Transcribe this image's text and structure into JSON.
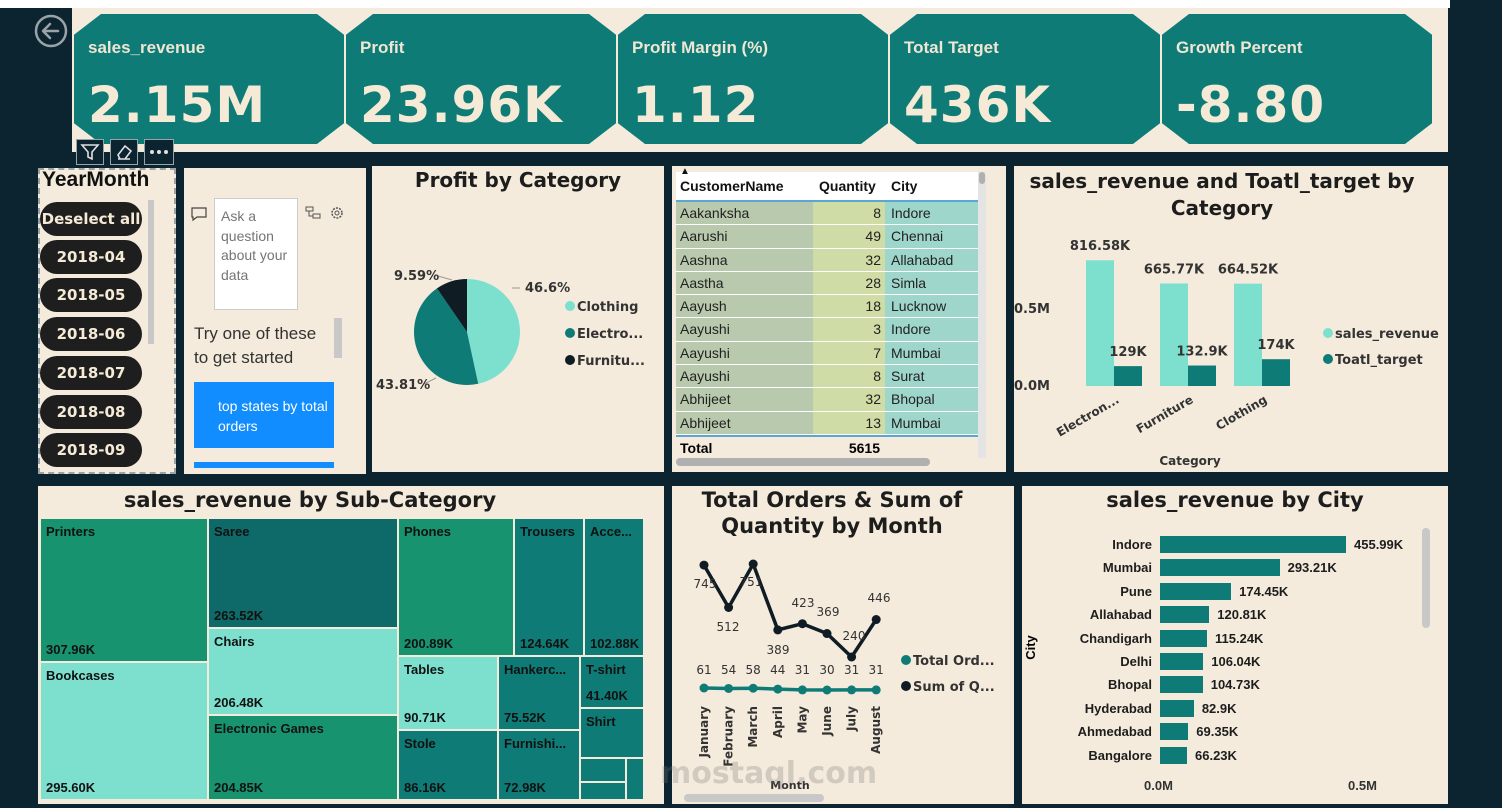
{
  "nav": {
    "back_icon": "back-arrow-icon"
  },
  "kpis": [
    {
      "label": "sales_revenue",
      "value": "2.15M"
    },
    {
      "label": "Profit",
      "value": "23.96K"
    },
    {
      "label": "Profit Margin (%)",
      "value": "1.12"
    },
    {
      "label": "Total Target",
      "value": "436K"
    },
    {
      "label": "Growth Percent",
      "value": "-8.80"
    }
  ],
  "colors": {
    "teal": "#0e7b76",
    "light_teal": "#7de0cf",
    "dark": "#0f1c24",
    "panel": "#f4ebdc",
    "background": "#0c2430"
  },
  "visual_toolbar": {
    "filter_icon": "filter-icon",
    "eraser_icon": "eraser-icon",
    "more_icon": "more-options-icon"
  },
  "slicer": {
    "title": "YearMonth",
    "deselect_label": "Deselect all",
    "items": [
      "2018-04",
      "2018-05",
      "2018-06",
      "2018-07",
      "2018-08",
      "2018-09"
    ]
  },
  "qna": {
    "placeholder": "Ask a question about your data",
    "prompt": "Try one of these to get started",
    "suggestion": "top states by total orders"
  },
  "profit_by_category": {
    "title": "Profit by Category",
    "legend": [
      "Clothing",
      "Electro...",
      "Furnitu..."
    ],
    "labels": [
      "9.59%",
      "46.6%",
      "43.81%"
    ]
  },
  "customer_table": {
    "headers": [
      "CustomerName",
      "Quantity",
      "City"
    ],
    "rows": [
      [
        "Aakanksha",
        "8",
        "Indore"
      ],
      [
        "Aarushi",
        "49",
        "Chennai"
      ],
      [
        "Aashna",
        "32",
        "Allahabad"
      ],
      [
        "Aastha",
        "28",
        "Simla"
      ],
      [
        "Aayush",
        "18",
        "Lucknow"
      ],
      [
        "Aayushi",
        "3",
        "Indore"
      ],
      [
        "Aayushi",
        "7",
        "Mumbai"
      ],
      [
        "Aayushi",
        "8",
        "Surat"
      ],
      [
        "Abhijeet",
        "32",
        "Bhopal"
      ],
      [
        "Abhijeet",
        "13",
        "Mumbai"
      ]
    ],
    "total_label": "Total",
    "total_value": "5615"
  },
  "revenue_target_chart": {
    "title": "sales_revenue and Toatl_target by Category",
    "xlabel": "Category",
    "legend": [
      "sales_revenue",
      "Toatl_target"
    ],
    "y_ticks": [
      "0.5M",
      "0.0M"
    ]
  },
  "subcategory_treemap": {
    "title": "sales_revenue by Sub-Category",
    "tiles": [
      {
        "name": "Printers",
        "value": "307.96K"
      },
      {
        "name": "Bookcases",
        "value": "295.60K"
      },
      {
        "name": "Saree",
        "value": "263.52K"
      },
      {
        "name": "Chairs",
        "value": "206.48K"
      },
      {
        "name": "Electronic Games",
        "value": "204.85K"
      },
      {
        "name": "Phones",
        "value": "200.89K"
      },
      {
        "name": "Trousers",
        "value": "124.64K"
      },
      {
        "name": "Acce...",
        "value": "102.88K"
      },
      {
        "name": "Tables",
        "value": "90.71K"
      },
      {
        "name": "Stole",
        "value": "86.16K"
      },
      {
        "name": "Hankerc...",
        "value": "75.52K"
      },
      {
        "name": "Furnishi...",
        "value": "72.98K"
      },
      {
        "name": "T-shirt",
        "value": "41.40K"
      },
      {
        "name": "Shirt",
        "value": ""
      }
    ]
  },
  "orders_quantity_chart": {
    "title_line1": "Total Orders & Sum of",
    "title_line2": "Quantity by Month",
    "xlabel": "Month",
    "legend": [
      "Total Ord...",
      "Sum of Q..."
    ]
  },
  "city_chart": {
    "title": "sales_revenue by City",
    "ylabel": "City",
    "x_ticks": [
      "0.0M",
      "0.5M"
    ],
    "cities": [
      {
        "name": "Indore",
        "value": 455.99,
        "label": "455.99K"
      },
      {
        "name": "Mumbai",
        "value": 293.21,
        "label": "293.21K"
      },
      {
        "name": "Pune",
        "value": 174.45,
        "label": "174.45K"
      },
      {
        "name": "Allahabad",
        "value": 120.81,
        "label": "120.81K"
      },
      {
        "name": "Chandigarh",
        "value": 115.24,
        "label": "115.24K"
      },
      {
        "name": "Delhi",
        "value": 106.04,
        "label": "106.04K"
      },
      {
        "name": "Bhopal",
        "value": 104.73,
        "label": "104.73K"
      },
      {
        "name": "Hyderabad",
        "value": 82.9,
        "label": "82.9K"
      },
      {
        "name": "Ahmedabad",
        "value": 69.35,
        "label": "69.35K"
      },
      {
        "name": "Bangalore",
        "value": 66.23,
        "label": "66.23K"
      }
    ]
  },
  "watermark": {
    "text": "mostaql.com"
  },
  "chart_data": [
    {
      "type": "pie",
      "title": "Profit by Category",
      "categories": [
        "Clothing",
        "Electronics",
        "Furniture"
      ],
      "values": [
        46.6,
        43.81,
        9.59
      ],
      "labels": [
        "46.6%",
        "43.81%",
        "9.59%"
      ]
    },
    {
      "type": "bar",
      "title": "sales_revenue and Toatl_target by Category",
      "categories": [
        "Electron...",
        "Furniture",
        "Clothing"
      ],
      "series": [
        {
          "name": "sales_revenue",
          "values": [
            816.58,
            665.77,
            664.52
          ],
          "labels": [
            "816.58K",
            "665.77K",
            "664.52K"
          ]
        },
        {
          "name": "Toatl_target",
          "values": [
            129,
            132.9,
            174
          ],
          "labels": [
            "129K",
            "132.9K",
            "174K"
          ]
        }
      ],
      "xlabel": "Category",
      "ylim": [
        0,
        900
      ]
    },
    {
      "type": "line",
      "title": "Total Orders & Sum of Quantity by Month",
      "categories": [
        "January",
        "February",
        "March",
        "April",
        "May",
        "June",
        "July",
        "August"
      ],
      "series": [
        {
          "name": "Total Orders",
          "values": [
            61,
            54,
            58,
            44,
            31,
            30,
            31,
            31
          ]
        },
        {
          "name": "Sum of Quantity",
          "values": [
            745,
            512,
            751,
            389,
            423,
            369,
            240,
            446
          ]
        }
      ],
      "xlabel": "Month"
    },
    {
      "type": "bar",
      "title": "sales_revenue by City",
      "orientation": "horizontal",
      "categories": [
        "Indore",
        "Mumbai",
        "Pune",
        "Allahabad",
        "Chandigarh",
        "Delhi",
        "Bhopal",
        "Hyderabad",
        "Ahmedabad",
        "Bangalore"
      ],
      "values": [
        455.99,
        293.21,
        174.45,
        120.81,
        115.24,
        106.04,
        104.73,
        82.9,
        69.35,
        66.23
      ],
      "ylabel": "City",
      "xlim": [
        0,
        600
      ]
    }
  ]
}
